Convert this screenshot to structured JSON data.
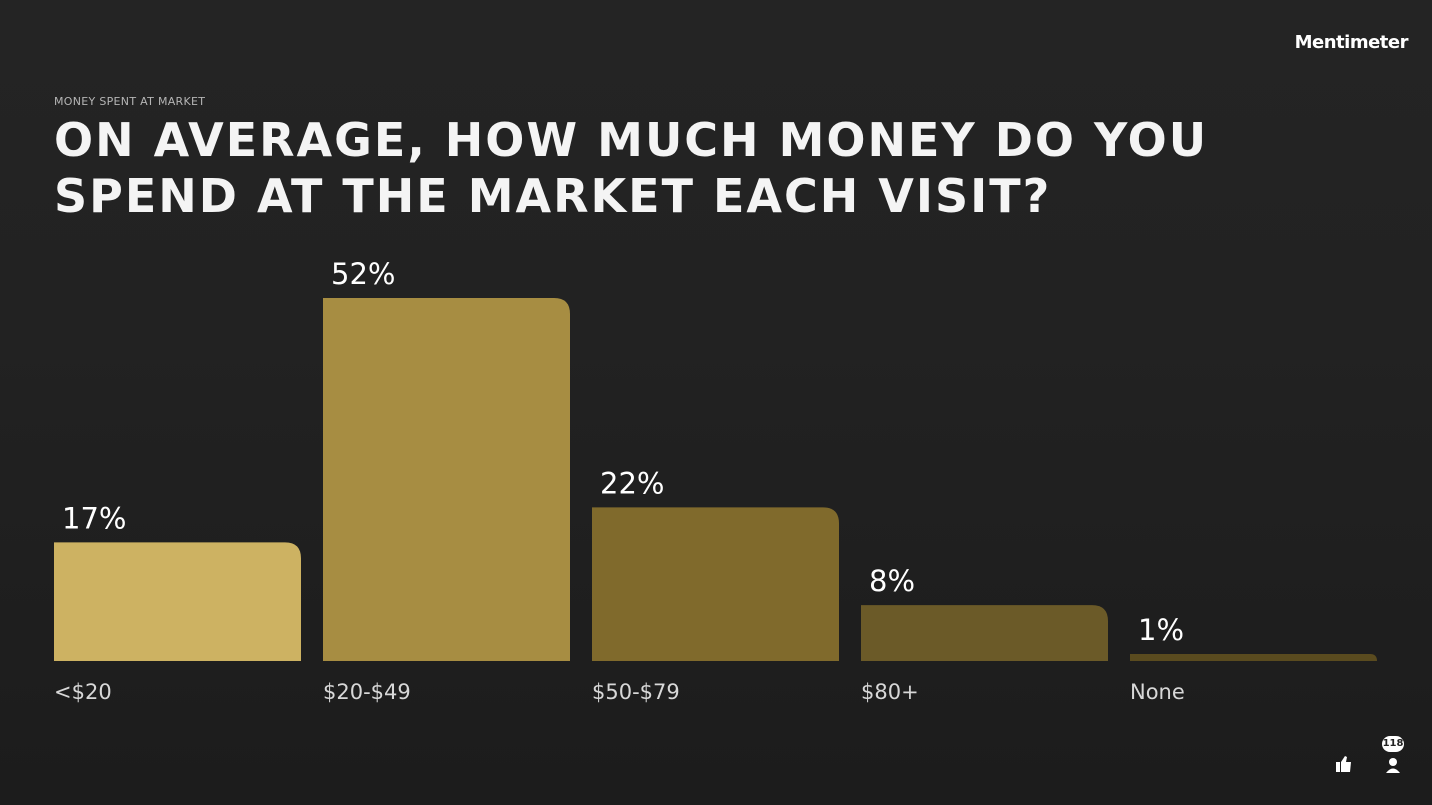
{
  "brand": "Mentimeter",
  "participant_count": 118,
  "chart_data": {
    "type": "bar",
    "subtitle": "MONEY SPENT AT MARKET",
    "title": "ON AVERAGE, HOW MUCH MONEY DO YOU SPEND AT THE MARKET EACH VISIT?",
    "categories": [
      "<$20",
      "$20-$49",
      "$50-$79",
      "$80+",
      "None"
    ],
    "values": [
      17,
      52,
      22,
      8,
      1
    ],
    "value_labels": [
      "17%",
      "52%",
      "22%",
      "8%",
      "1%"
    ],
    "colors": [
      "#cdb262",
      "#a78d42",
      "#806a2c",
      "#6b5a28",
      "#5a4b1f"
    ]
  }
}
